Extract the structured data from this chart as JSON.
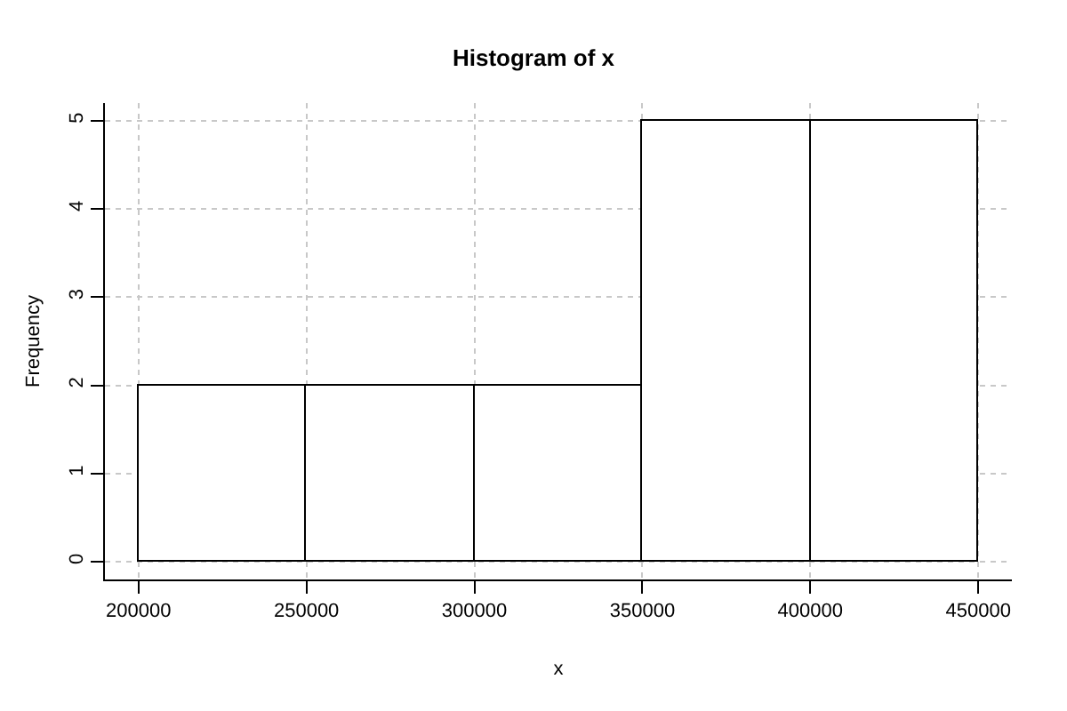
{
  "chart_data": {
    "type": "histogram",
    "title": "Histogram of x",
    "xlabel": "x",
    "ylabel": "Frequency",
    "bins": [
      200000,
      250000,
      300000,
      350000,
      400000,
      450000
    ],
    "values": [
      2,
      2,
      2,
      5,
      5
    ],
    "color": "#ffffff",
    "xlim": [
      190000,
      460000
    ],
    "xticks": [
      200000,
      250000,
      300000,
      350000,
      400000,
      450000
    ],
    "ylim": [
      -0.2,
      5.2
    ],
    "yticks": [
      0,
      1,
      2,
      3,
      4,
      5
    ],
    "grid": true
  }
}
